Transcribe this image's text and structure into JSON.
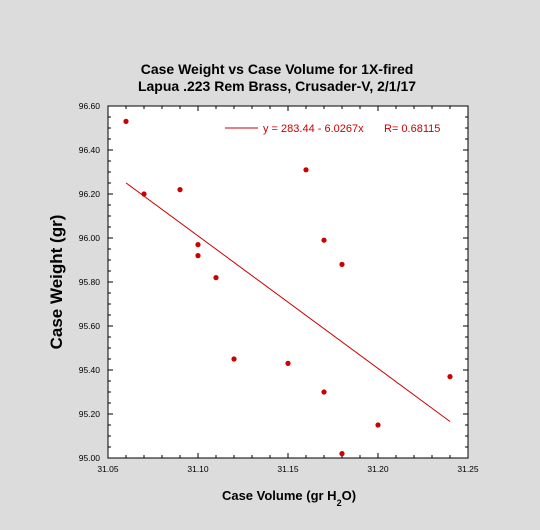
{
  "chart_data": {
    "type": "scatter",
    "title_line1": "Case Weight vs Case Volume for 1X-fired",
    "title_line2": "Lapua .223 Rem Brass, Crusader-V, 2/1/17",
    "xlabel_main": "Case Volume (gr H",
    "xlabel_sub": "2",
    "xlabel_end": "O)",
    "ylabel": "Case Weight (gr)",
    "xlim": [
      31.05,
      31.25
    ],
    "ylim": [
      95.0,
      96.6
    ],
    "xticks": [
      "31.05",
      "31.10",
      "31.15",
      "31.20",
      "31.25"
    ],
    "yticks": [
      "95.00",
      "95.20",
      "95.40",
      "95.60",
      "95.80",
      "96.00",
      "96.20",
      "96.40",
      "96.60"
    ],
    "grid": false,
    "color": "#cc0000",
    "points": [
      {
        "x": 31.06,
        "y": 96.53
      },
      {
        "x": 31.07,
        "y": 96.2
      },
      {
        "x": 31.09,
        "y": 96.22
      },
      {
        "x": 31.1,
        "y": 95.97
      },
      {
        "x": 31.1,
        "y": 95.92
      },
      {
        "x": 31.11,
        "y": 95.82
      },
      {
        "x": 31.12,
        "y": 95.45
      },
      {
        "x": 31.15,
        "y": 95.43
      },
      {
        "x": 31.16,
        "y": 96.31
      },
      {
        "x": 31.17,
        "y": 95.99
      },
      {
        "x": 31.17,
        "y": 95.3
      },
      {
        "x": 31.18,
        "y": 95.88
      },
      {
        "x": 31.18,
        "y": 95.02
      },
      {
        "x": 31.2,
        "y": 95.15
      },
      {
        "x": 31.24,
        "y": 95.37
      }
    ],
    "fit": {
      "intercept": 283.44,
      "slope": -6.0267,
      "x_start": 31.06,
      "x_end": 31.24
    },
    "legend_equation": "y = 283.44 - 6.0267x",
    "legend_r": "R= 0.68115",
    "legend_position": "top-right"
  }
}
